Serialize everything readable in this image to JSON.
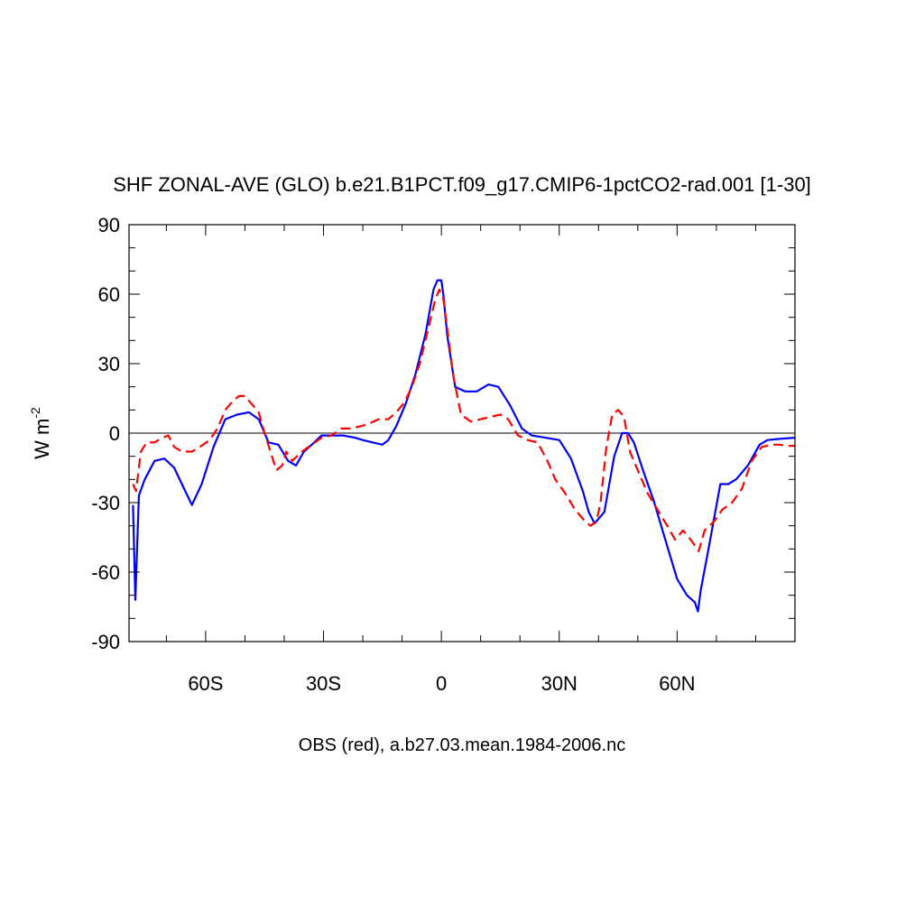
{
  "chart_data": {
    "type": "line",
    "title": "SHF ZONAL-AVE (GLO) b.e21.B1PCT.f09_g17.CMIP6-1pctCO2-rad.001 [1-30]",
    "caption": "OBS (red), a.b27.03.mean.1984-2006.nc",
    "ylabel": {
      "main": "W m",
      "sup": "-2"
    },
    "xlim": [
      -79.5,
      90
    ],
    "ylim": [
      -90,
      90
    ],
    "yticks": [
      {
        "value": 90,
        "label": "90"
      },
      {
        "value": 60,
        "label": "60"
      },
      {
        "value": 30,
        "label": "30"
      },
      {
        "value": 0,
        "label": "0"
      },
      {
        "value": -30,
        "label": "-30"
      },
      {
        "value": -60,
        "label": "-60"
      },
      {
        "value": -90,
        "label": "-90"
      }
    ],
    "xticks": [
      {
        "value": -60,
        "label": "60S"
      },
      {
        "value": -30,
        "label": "30S"
      },
      {
        "value": 0,
        "label": "0"
      },
      {
        "value": 30,
        "label": "30N"
      },
      {
        "value": 60,
        "label": "60N"
      }
    ],
    "zero_line": 0,
    "series": [
      {
        "color": "#0000ff",
        "dash": "solid",
        "x": [
          -78.5,
          -77.9,
          -77,
          -75.5,
          -73,
          -70.5,
          -68,
          -65.5,
          -63.5,
          -61,
          -58,
          -55,
          -52,
          -49,
          -46.5,
          -44,
          -41.5,
          -39,
          -37,
          -35,
          -33,
          -30.5,
          -28,
          -25,
          -22,
          -20,
          -17.5,
          -15,
          -13.5,
          -11.5,
          -9,
          -6.5,
          -4,
          -2,
          -1,
          0,
          0.5,
          1.5,
          3.5,
          6,
          9,
          12,
          14.5,
          17.5,
          20.5,
          23,
          26.5,
          30,
          33,
          36,
          37.5,
          39,
          41.5,
          44,
          46,
          47.5,
          49,
          51.5,
          54,
          57,
          60,
          62.5,
          64.5,
          65.3,
          66,
          68,
          71,
          73,
          75,
          78,
          81,
          83,
          86,
          90
        ],
        "y": [
          -31,
          -72,
          -27,
          -20,
          -12,
          -11,
          -15,
          -24,
          -31,
          -22,
          -6,
          6,
          8,
          9,
          6,
          -4,
          -5,
          -12,
          -14,
          -8,
          -5,
          -1,
          -1,
          -1,
          -2,
          -3,
          -4,
          -5,
          -3,
          3,
          13,
          26,
          43,
          62,
          66,
          66,
          60,
          42,
          20,
          18,
          18,
          21,
          20,
          12,
          2,
          -1,
          -2,
          -3,
          -11,
          -25,
          -34,
          -39,
          -34,
          -10,
          0,
          0,
          -4,
          -17,
          -29,
          -46,
          -63,
          -70,
          -73,
          -77,
          -68,
          -50,
          -22,
          -22,
          -20,
          -14,
          -5,
          -3,
          -2.5,
          -2
        ]
      },
      {
        "color": "#ff0000",
        "dash": "dashed",
        "x": [
          -78.5,
          -77.7,
          -76.5,
          -75,
          -73,
          -71,
          -69.5,
          -68,
          -66,
          -63.5,
          -61.5,
          -59,
          -57,
          -55,
          -53,
          -51.5,
          -50,
          -49,
          -48,
          -46.5,
          -45,
          -43.5,
          -42,
          -40.5,
          -39.5,
          -38,
          -35.5,
          -33,
          -30.5,
          -28,
          -25.5,
          -23,
          -20.5,
          -18.5,
          -16,
          -13.5,
          -11.5,
          -9.5,
          -7.5,
          -5.5,
          -3.5,
          -1.5,
          -0.5,
          0.5,
          1.5,
          3,
          5,
          7.5,
          10,
          12.5,
          15,
          17,
          19.5,
          22,
          24.5,
          27,
          29,
          31.5,
          34,
          36.5,
          38,
          39.5,
          40.5,
          42,
          43.5,
          45,
          46.5,
          48,
          50,
          52.5,
          55,
          57.5,
          59.5,
          61.5,
          63,
          64.3,
          65.5,
          67,
          69.5,
          71.5,
          74,
          76.5,
          79,
          81.5,
          84,
          86,
          88,
          90
        ],
        "y": [
          -22,
          -25,
          -8,
          -4,
          -4,
          -2,
          -1,
          -6,
          -8,
          -8,
          -6,
          -3,
          2,
          10,
          14,
          16,
          16,
          14,
          12,
          9,
          0,
          -8,
          -16,
          -14,
          -8,
          -12,
          -8,
          -5,
          -2,
          -1,
          2,
          2,
          3,
          4,
          6,
          6,
          9,
          13,
          20,
          30,
          44,
          58,
          62,
          58,
          45,
          25,
          8,
          5,
          6,
          7,
          8,
          6,
          -1,
          -3,
          -4,
          -12,
          -20,
          -26,
          -33,
          -38,
          -40,
          -38,
          -30,
          -6,
          8,
          10,
          7,
          -8,
          -16,
          -26,
          -33,
          -40,
          -46,
          -42,
          -45,
          -48,
          -51,
          -42,
          -38,
          -33,
          -30,
          -24,
          -12,
          -6,
          -5,
          -5,
          -5.5,
          -5.5
        ]
      }
    ]
  }
}
